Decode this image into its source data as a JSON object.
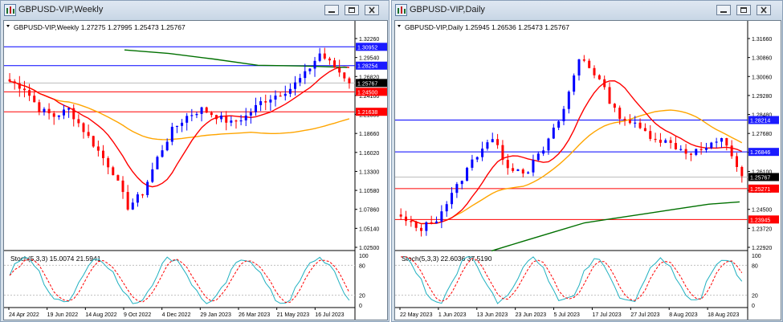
{
  "windows": [
    {
      "id": "weekly",
      "title": "GBPUSD-VIP,Weekly",
      "info": "GBPUSD-VIP,Weekly  1.27275 1.27995 1.25473 1.25767",
      "price_axis": [
        "1.32260",
        "1.29540",
        "1.26820",
        "1.24100",
        "1.21380",
        "1.18660",
        "1.16020",
        "1.13300",
        "1.10580",
        "1.07860",
        "1.05140",
        "1.02500"
      ],
      "levels": [
        {
          "label": "1.30952",
          "value": 1.30952,
          "color": "#0000ff",
          "badge": "#1a1aff"
        },
        {
          "label": "1.28254",
          "value": 1.28254,
          "color": "#0000ff",
          "badge": "#1a1aff"
        },
        {
          "label": "1.25767",
          "value": 1.25767,
          "color": "#bdbdbd",
          "badge": "#000000"
        },
        {
          "label": "1.24500",
          "value": 1.245,
          "color": "#ff0000",
          "badge": "#ff0000"
        },
        {
          "label": "1.21638",
          "value": 1.21638,
          "color": "#ff0000",
          "badge": "#ff0000"
        }
      ],
      "stoch_label": "Stoch(5,3,3) 15.0074 21.5941",
      "stoch_axis": [
        "100",
        "80",
        "20",
        "0"
      ],
      "time_axis": [
        "24 Apr 2022",
        "19 Jun 2022",
        "14 Aug 2022",
        "9 Oct 2022",
        "4 Dec 2022",
        "29 Jan 2023",
        "26 Mar 2023",
        "21 May 2023",
        "16 Jul 2023"
      ]
    },
    {
      "id": "daily",
      "title": "GBPUSD-VIP,Daily",
      "info": "GBPUSD-VIP,Daily  1.25945 1.26536 1.25473 1.25767",
      "price_axis": [
        "1.31660",
        "1.30860",
        "1.30060",
        "1.29280",
        "1.28480",
        "1.27680",
        "1.26880",
        "1.26100",
        "1.25300",
        "1.24500",
        "1.23720",
        "1.22920"
      ],
      "levels": [
        {
          "label": "1.28214",
          "value": 1.28214,
          "color": "#0000ff",
          "badge": "#1a1aff"
        },
        {
          "label": "1.26846",
          "value": 1.26846,
          "color": "#0000ff",
          "badge": "#1a1aff"
        },
        {
          "label": "1.25767",
          "value": 1.25767,
          "color": "#bdbdbd",
          "badge": "#000000"
        },
        {
          "label": "1.25271",
          "value": 1.25271,
          "color": "#ff0000",
          "badge": "#ff0000"
        },
        {
          "label": "1.23945",
          "value": 1.23945,
          "color": "#ff0000",
          "badge": "#ff0000"
        }
      ],
      "stoch_label": "Stoch(5,3,3) 22.6036 37.5190",
      "stoch_axis": [
        "100",
        "80",
        "20",
        "0"
      ],
      "time_axis": [
        "22 May 2023",
        "1 Jun 2023",
        "13 Jun 2023",
        "23 Jun 2023",
        "5 Jul 2023",
        "17 Jul 2023",
        "27 Jul 2023",
        "8 Aug 2023",
        "18 Aug 2023"
      ]
    }
  ],
  "colors": {
    "bull": "#0000ff",
    "bear": "#ff0000",
    "ma_fast": "#ff0000",
    "ma_mid": "#ffa500",
    "ma_slow": "#007000",
    "stoch_main": "#20b0c0",
    "stoch_signal": "#ff0000"
  }
}
